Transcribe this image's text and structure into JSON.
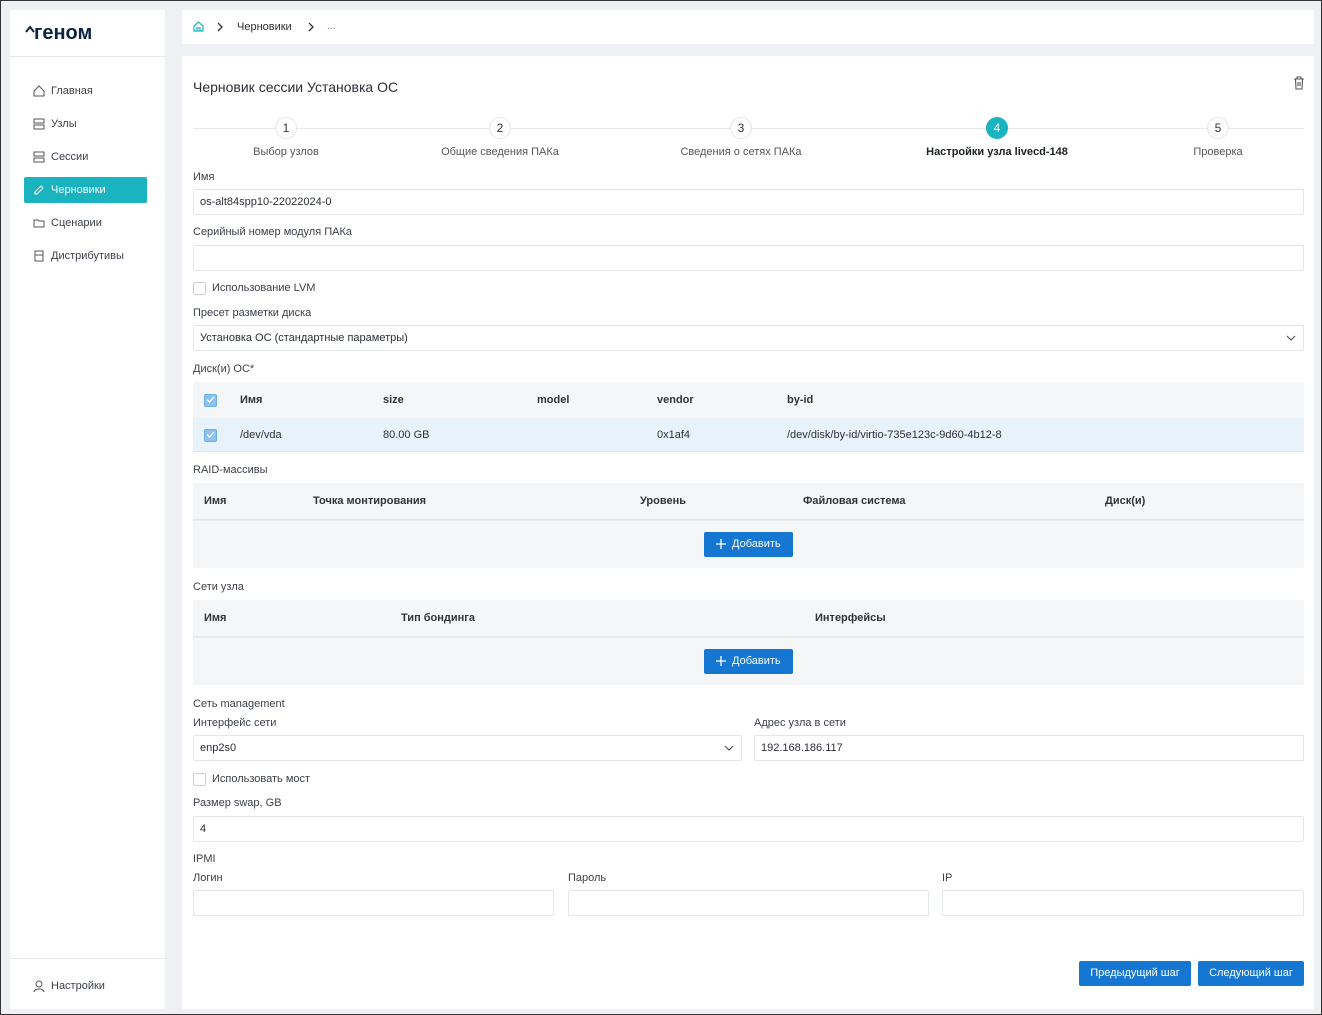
{
  "sidebar": {
    "logo": "геном",
    "menu": [
      "Главная",
      "Узлы",
      "Сессии",
      "Черновики",
      "Сценарии",
      "Дистрибутивы"
    ],
    "settings": "Настройки"
  },
  "breadcrumbs": [
    "Черновики",
    "..."
  ],
  "title": "Черновик сессии Установка ОС",
  "steps": [
    {
      "number": "1",
      "label": "Выбор узлов"
    },
    {
      "number": "2",
      "label": "Общие сведения ПАКа"
    },
    {
      "number": "3",
      "label": "Сведения о сетях ПАКа"
    },
    {
      "number": "4",
      "label": "Настройки узла livecd-148"
    },
    {
      "number": "5",
      "label": "Проверка"
    }
  ],
  "form": {
    "name": {
      "label": "Имя",
      "value": "os-alt84spp10-22022024-0"
    },
    "serial": {
      "label": "Серийный номер модуля ПАКа"
    },
    "lvm": {
      "label": "Использование LVM"
    },
    "preset": {
      "label": "Пресет разметки диска",
      "value": "Установка ОС (стандартные параметры)"
    },
    "disks": {
      "label": "Диск(и) ОС*",
      "columns": [
        "Имя",
        "size",
        "model",
        "vendor",
        "by-id"
      ],
      "rows": [
        [
          "/dev/vda",
          "80.00 GB",
          null,
          "0x1af4",
          "/dev/disk/by-id/virtio-735e123c-9d60-4b12-8"
        ]
      ]
    },
    "raid": {
      "label": "RAID-массивы",
      "columns": [
        "Имя",
        "Точка монтирования",
        "Уровень",
        "Файловая система",
        "Диск(и)"
      ],
      "button": "Добавить"
    },
    "networks": {
      "label": "Сети узла",
      "columns": [
        "Имя",
        "Тип бондинга",
        "Интерфейсы"
      ],
      "button": "Добавить"
    },
    "management": {
      "label": "Сеть management",
      "interface": {
        "label": "Интерфейс сети",
        "value": "enp2s0"
      },
      "address": {
        "label": "Адрес узла в сети",
        "value": "192.168.186.117"
      }
    },
    "bridge": {
      "label": "Использовать мост"
    },
    "swap": {
      "label": "Размер swap, GB",
      "value": "4"
    },
    "ipmi": {
      "label": "IPMI",
      "fields": [
        "Логин",
        "Пароль",
        "IP"
      ]
    }
  },
  "buttons": [
    "Предыдущий шаг",
    "Следующий шаг"
  ]
}
